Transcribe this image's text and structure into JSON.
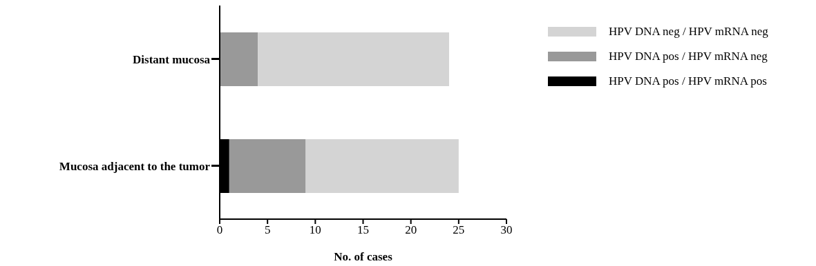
{
  "chart_data": {
    "type": "bar",
    "orientation": "horizontal",
    "stacked": true,
    "categories": [
      "Distant mucosa",
      "Mucosa adjacent to the tumor"
    ],
    "xlabel": "No. of cases",
    "xlim": [
      0,
      30
    ],
    "xticks": [
      0,
      5,
      10,
      15,
      20,
      25,
      30
    ],
    "legend": "right",
    "grid": false,
    "series": [
      {
        "name": "HPV DNA pos / HPV mRNA pos",
        "color": "#000000",
        "values": [
          0,
          1
        ]
      },
      {
        "name": "HPV DNA pos / HPV mRNA neg",
        "color": "#999999",
        "values": [
          4,
          8
        ]
      },
      {
        "name": "HPV DNA neg / HPV mRNA neg",
        "color": "#d4d4d4",
        "values": [
          20,
          16
        ]
      }
    ]
  }
}
